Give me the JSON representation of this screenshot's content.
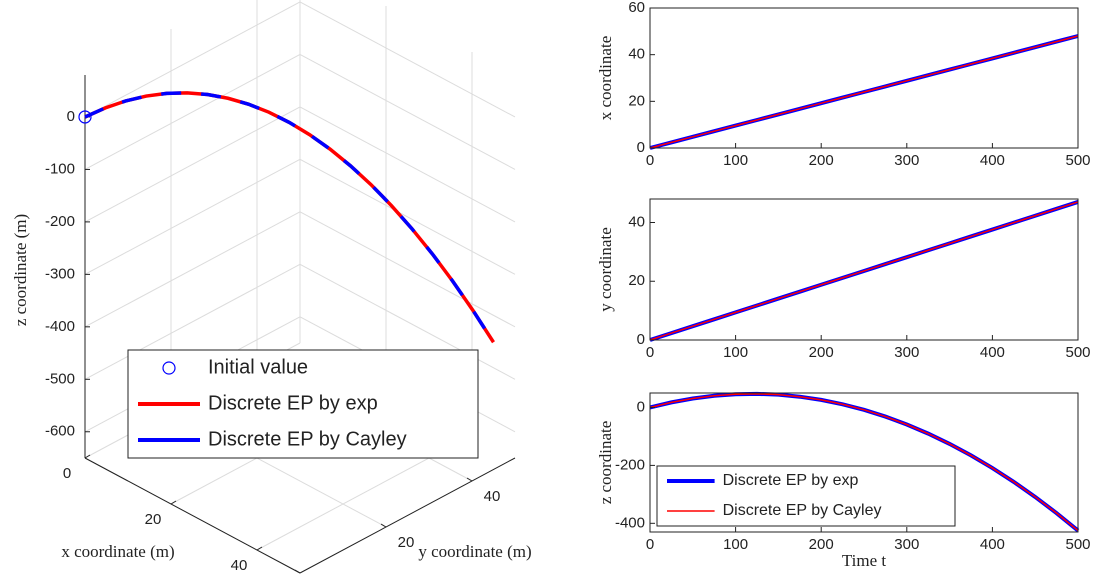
{
  "chart_data": [
    {
      "type": "line3d",
      "xlabel": "x coordinate (m)",
      "ylabel": "y coordinate (m)",
      "zlabel": "z coordinate (m)",
      "xlim": [
        0,
        50
      ],
      "ylim": [
        0,
        50
      ],
      "zlim": [
        -650,
        80
      ],
      "xticks": [
        0,
        20,
        40
      ],
      "yticks": [
        0,
        20,
        40
      ],
      "zticks": [
        0,
        -100,
        -200,
        -300,
        -400,
        -500,
        -600
      ],
      "grid": true,
      "legend": "lower center",
      "series": [
        {
          "name": "Initial value",
          "color": "#0000ff",
          "marker": "circle",
          "x": [
            0
          ],
          "y": [
            0
          ],
          "z": [
            0
          ]
        },
        {
          "name": "Discrete EP by exp",
          "color": "#ff0000",
          "style": "solid",
          "x": [
            0,
            2.4,
            4.8,
            7.2,
            9.6,
            12,
            14.4,
            16.8,
            19.2,
            21.6,
            24,
            26.4,
            28.8,
            31.2,
            33.6,
            36,
            38.4,
            40.8,
            43.2,
            45.6,
            48
          ],
          "y": [
            0,
            2.35,
            4.7,
            7.05,
            9.4,
            11.75,
            14.1,
            16.45,
            18.8,
            21.15,
            23.5,
            25.85,
            28.2,
            30.55,
            32.9,
            35.25,
            37.6,
            39.95,
            42.3,
            44.65,
            47
          ],
          "z": [
            0,
            17.6,
            31.1,
            40.5,
            45.8,
            47.0,
            44.2,
            37.2,
            26.2,
            11.1,
            -8.1,
            -31.4,
            -58.8,
            -90.3,
            -125.8,
            -165.5,
            -209.2,
            -257.0,
            -308.9,
            -364.9,
            -425
          ]
        },
        {
          "name": "Discrete EP by Cayley",
          "color": "#0000ff",
          "style": "dashed",
          "x": [
            0,
            2.4,
            4.8,
            7.2,
            9.6,
            12,
            14.4,
            16.8,
            19.2,
            21.6,
            24,
            26.4,
            28.8,
            31.2,
            33.6,
            36,
            38.4,
            40.8,
            43.2,
            45.6,
            48
          ],
          "y": [
            0,
            2.35,
            4.7,
            7.05,
            9.4,
            11.75,
            14.1,
            16.45,
            18.8,
            21.15,
            23.5,
            25.85,
            28.2,
            30.55,
            32.9,
            35.25,
            37.6,
            39.95,
            42.3,
            44.65,
            47
          ],
          "z": [
            0,
            17.6,
            31.1,
            40.5,
            45.8,
            47.0,
            44.2,
            37.2,
            26.2,
            11.1,
            -8.1,
            -31.4,
            -58.8,
            -90.3,
            -125.8,
            -165.5,
            -209.2,
            -257.0,
            -308.9,
            -364.9,
            -425
          ]
        }
      ]
    },
    {
      "type": "line",
      "ylabel": "x coordinate",
      "xlim": [
        0,
        500
      ],
      "xticks": [
        0,
        100,
        200,
        300,
        400,
        500
      ],
      "ylim": [
        0,
        60
      ],
      "yticks": [
        0,
        20,
        40,
        60
      ],
      "x": [
        0,
        25,
        50,
        75,
        100,
        125,
        150,
        175,
        200,
        225,
        250,
        275,
        300,
        325,
        350,
        375,
        400,
        425,
        450,
        475,
        500
      ],
      "series": [
        {
          "color": "#0000ff",
          "width": 4,
          "values": [
            0,
            2.4,
            4.8,
            7.2,
            9.6,
            12,
            14.4,
            16.8,
            19.2,
            21.6,
            24,
            26.4,
            28.8,
            31.2,
            33.6,
            36,
            38.4,
            40.8,
            43.2,
            45.6,
            48
          ]
        },
        {
          "color": "#ff0000",
          "width": 1.5,
          "values": [
            0,
            2.4,
            4.8,
            7.2,
            9.6,
            12,
            14.4,
            16.8,
            19.2,
            21.6,
            24,
            26.4,
            28.8,
            31.2,
            33.6,
            36,
            38.4,
            40.8,
            43.2,
            45.6,
            48
          ]
        }
      ]
    },
    {
      "type": "line",
      "ylabel": "y coordinate",
      "xlim": [
        0,
        500
      ],
      "xticks": [
        0,
        100,
        200,
        300,
        400,
        500
      ],
      "ylim": [
        0,
        48
      ],
      "yticks": [
        0,
        20,
        40
      ],
      "x": [
        0,
        25,
        50,
        75,
        100,
        125,
        150,
        175,
        200,
        225,
        250,
        275,
        300,
        325,
        350,
        375,
        400,
        425,
        450,
        475,
        500
      ],
      "series": [
        {
          "color": "#0000ff",
          "width": 4,
          "values": [
            0,
            2.35,
            4.7,
            7.05,
            9.4,
            11.75,
            14.1,
            16.45,
            18.8,
            21.15,
            23.5,
            25.85,
            28.2,
            30.55,
            32.9,
            35.25,
            37.6,
            39.95,
            42.3,
            44.65,
            47
          ]
        },
        {
          "color": "#ff0000",
          "width": 1.5,
          "values": [
            0,
            2.35,
            4.7,
            7.05,
            9.4,
            11.75,
            14.1,
            16.45,
            18.8,
            21.15,
            23.5,
            25.85,
            28.2,
            30.55,
            32.9,
            35.25,
            37.6,
            39.95,
            42.3,
            44.65,
            47
          ]
        }
      ]
    },
    {
      "type": "line",
      "ylabel": "z coordinate",
      "xlabel": "Time t",
      "xlim": [
        0,
        500
      ],
      "xticks": [
        0,
        100,
        200,
        300,
        400,
        500
      ],
      "ylim": [
        -430,
        50
      ],
      "yticks": [
        -400,
        -200,
        0
      ],
      "legend": "lower left",
      "x": [
        0,
        25,
        50,
        75,
        100,
        125,
        150,
        175,
        200,
        225,
        250,
        275,
        300,
        325,
        350,
        375,
        400,
        425,
        450,
        475,
        500
      ],
      "series": [
        {
          "name": "Discrete EP by exp",
          "color": "#0000ff",
          "width": 4,
          "values": [
            0,
            17.6,
            31.1,
            40.5,
            45.8,
            47.0,
            44.2,
            37.2,
            26.2,
            11.1,
            -8.1,
            -31.4,
            -58.8,
            -90.3,
            -125.8,
            -165.5,
            -209.2,
            -257.0,
            -308.9,
            -364.9,
            -425
          ]
        },
        {
          "name": "Discrete EP by Cayley",
          "color": "#ff0000",
          "width": 1.5,
          "values": [
            0,
            17.6,
            31.1,
            40.5,
            45.8,
            47.0,
            44.2,
            37.2,
            26.2,
            11.1,
            -8.1,
            -31.4,
            -58.8,
            -90.3,
            -125.8,
            -165.5,
            -209.2,
            -257.0,
            -308.9,
            -364.9,
            -425
          ]
        }
      ]
    }
  ]
}
